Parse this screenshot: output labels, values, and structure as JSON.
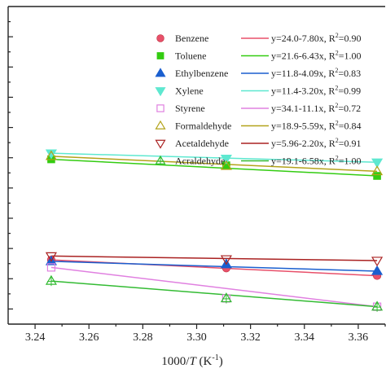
{
  "chart_data": {
    "type": "scatter",
    "xlabel_pre": "1000/",
    "xlabel_var": "T",
    "xlabel_post": " (K",
    "xlabel_sup": "-1",
    "xlabel_end": ")",
    "xlim": [
      3.23,
      3.37
    ],
    "ylim": [
      -3.8,
      0.4
    ],
    "xticks": [
      "3.24",
      "3.26",
      "3.28",
      "3.30",
      "3.32",
      "3.34",
      "3.36"
    ],
    "x": [
      3.246,
      3.311,
      3.367
    ],
    "series": [
      {
        "name": "Benzene",
        "marker": "circle",
        "color": "#e8506a",
        "points": [
          -2.95,
          -3.06,
          -3.16
        ],
        "fit": "y=24.0-7.80x, R",
        "fit_r2": "=0.90",
        "intercept": 24.0,
        "slope": -7.8
      },
      {
        "name": "Toluene",
        "marker": "square",
        "color": "#33cc11",
        "points": [
          -1.62,
          -1.7,
          -1.84
        ],
        "fit": "y=21.6-6.43x, R",
        "fit_r2": "=1.00",
        "intercept": 21.6,
        "slope": -6.43
      },
      {
        "name": "Ethylbenzene",
        "marker": "triangle-up",
        "color": "#1a5fcf",
        "points": [
          -2.97,
          -3.01,
          -3.1
        ],
        "fit": "y=11.8-4.09x, R",
        "fit_r2": "=0.83",
        "intercept": 11.8,
        "slope": -4.09
      },
      {
        "name": "Xylene",
        "marker": "triangle-down-filled",
        "color": "#5ee8d0",
        "points": [
          -1.54,
          -1.61,
          -1.66
        ],
        "fit": "y=11.4-3.20x, R",
        "fit_r2": "=0.99",
        "intercept": 11.4,
        "slope": -3.2
      },
      {
        "name": "Styrene",
        "marker": "square-open",
        "color": "#e080e0",
        "points": [
          -3.05,
          -3.46,
          -3.57
        ],
        "fit": "y=34.1-11.1x, R",
        "fit_r2": "=0.72",
        "intercept": 34.1,
        "slope": -11.1
      },
      {
        "name": "Formaldehyde",
        "marker": "triangle-up-open",
        "color": "#b3a31a",
        "points": [
          -1.58,
          -1.71,
          -1.78
        ],
        "fit": "y=18.9-5.59x, R",
        "fit_r2": "=0.84",
        "intercept": 18.9,
        "slope": -5.59
      },
      {
        "name": "Acetaldehyde",
        "marker": "triangle-down-open",
        "color": "#aa2222",
        "points": [
          -2.9,
          -2.94,
          -2.96
        ],
        "fit": "y=5.96-2.20x, R",
        "fit_r2": "=0.91",
        "intercept": 5.96,
        "slope": -2.2
      },
      {
        "name": "Acraldehyde",
        "marker": "triangle-up-cross",
        "color": "#33bb33",
        "points": [
          -3.23,
          -3.46,
          -3.57
        ],
        "fit": "y=19.1-6.58x, R",
        "fit_r2": "=1.00",
        "intercept": 19.1,
        "slope": -6.58
      }
    ]
  }
}
